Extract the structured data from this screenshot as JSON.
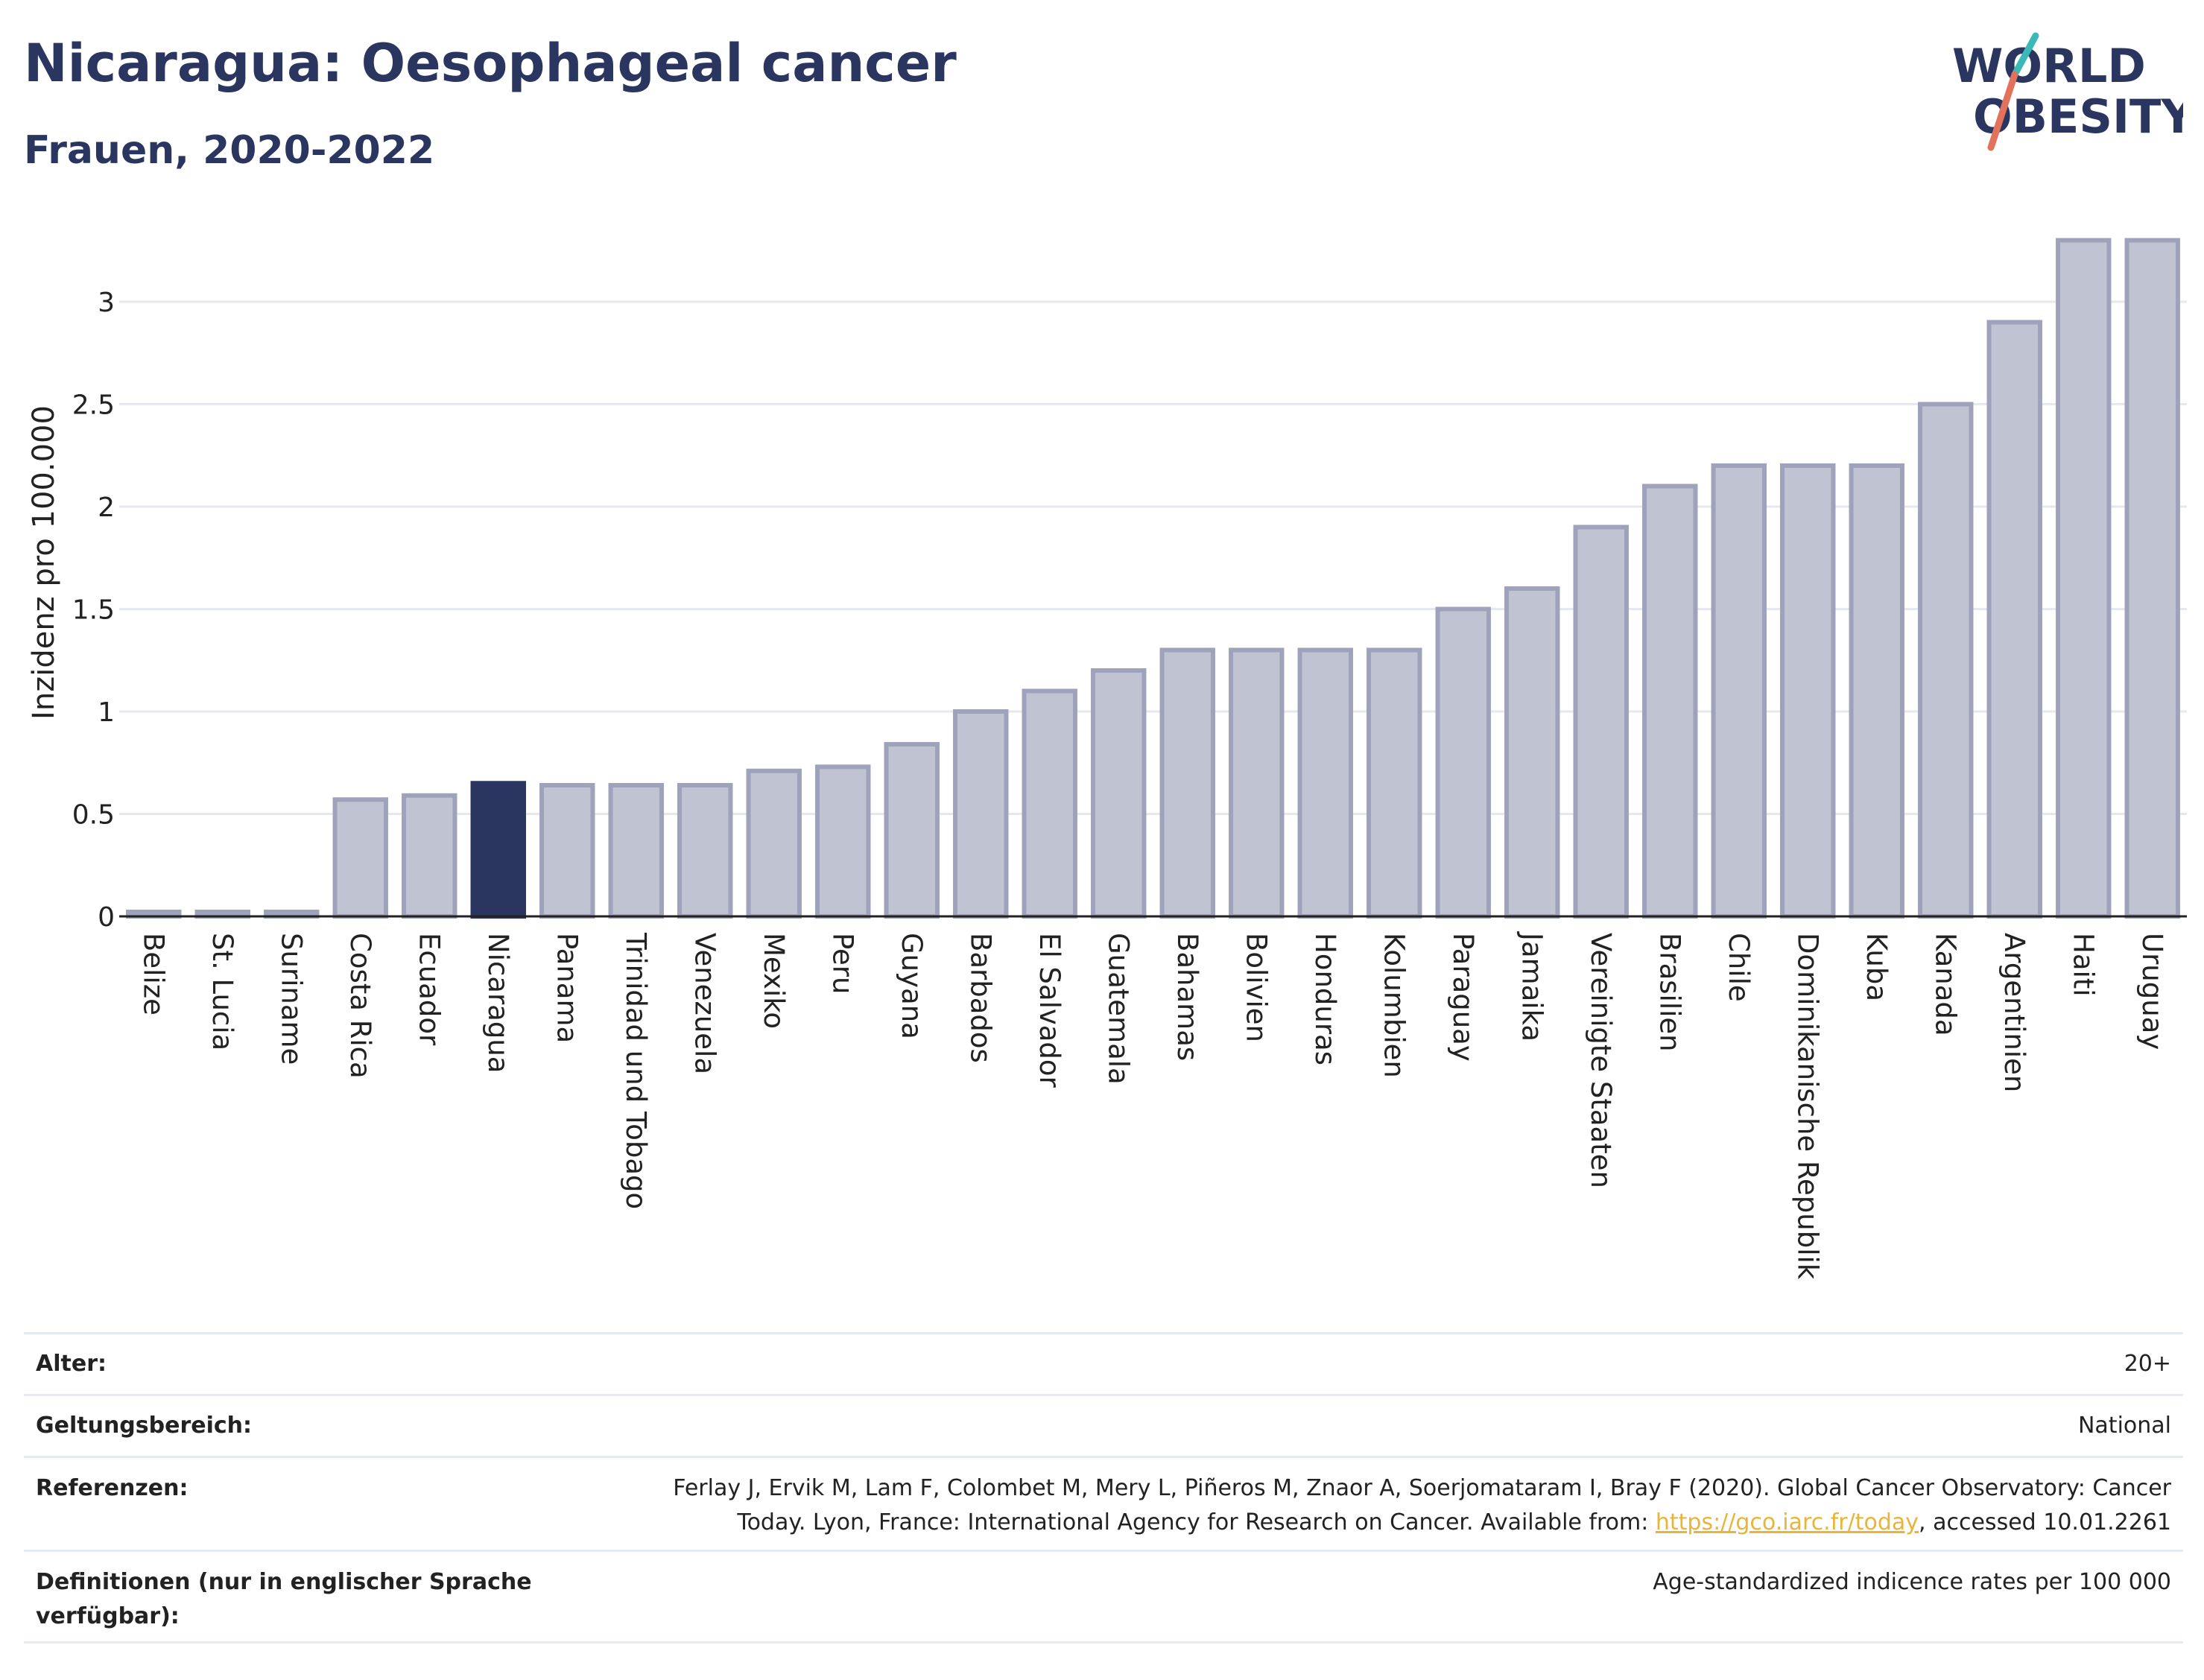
{
  "header": {
    "title": "Nicaragua: Oesophageal cancer",
    "subtitle": "Frauen, 2020-2022"
  },
  "logo": {
    "line1": "WORLD",
    "line2": "OBESITY"
  },
  "colors": {
    "highlight": "#2a3560",
    "bar_fill": "#bfc3d2",
    "bar_stroke": "#9ea3bb",
    "grid": "#e5e8ee",
    "text": "#2a3560",
    "logo_teal": "#3bb8b8",
    "logo_coral": "#e2725b"
  },
  "chart_data": {
    "type": "bar",
    "title": "",
    "xlabel": "",
    "ylabel": "Inzidenz pro 100.000",
    "ylim": [
      0,
      3.3
    ],
    "yticks": [
      0,
      0.5,
      1,
      1.5,
      2,
      2.5,
      3
    ],
    "ytick_labels": [
      "0",
      "0.5",
      "1",
      "1.5",
      "2",
      "2.5",
      "3"
    ],
    "grid": true,
    "highlight": "Nicaragua",
    "categories": [
      "Belize",
      "St. Lucia",
      "Suriname",
      "Costa Rica",
      "Ecuador",
      "Nicaragua",
      "Panama",
      "Trinidad und Tobago",
      "Venezuela",
      "Mexiko",
      "Peru",
      "Guyana",
      "Barbados",
      "El Salvador",
      "Guatemala",
      "Bahamas",
      "Bolivien",
      "Honduras",
      "Kolumbien",
      "Paraguay",
      "Jamaika",
      "Vereinigte Staaten",
      "Brasilien",
      "Chile",
      "Dominikanische Republik",
      "Kuba",
      "Kanada",
      "Argentinien",
      "Haiti",
      "Uruguay"
    ],
    "values": [
      0,
      0,
      0,
      0.57,
      0.59,
      0.65,
      0.64,
      0.64,
      0.64,
      0.71,
      0.73,
      0.84,
      1.0,
      1.1,
      1.2,
      1.3,
      1.3,
      1.3,
      1.3,
      1.5,
      1.6,
      1.9,
      2.1,
      2.2,
      2.2,
      2.2,
      2.5,
      2.9,
      3.3,
      3.3
    ]
  },
  "footer": {
    "rows": [
      {
        "label": "Alter:",
        "value": "20+"
      },
      {
        "label": "Geltungsbereich:",
        "value": "National"
      },
      {
        "label": "Referenzen:",
        "value_line1": "Ferlay J, Ervik M, Lam F, Colombet M, Mery L, Piñeros M, Znaor A, Soerjomataram I, Bray F (2020). Global Cancer Observatory: Cancer",
        "value_line2_pre": "Today. Lyon, France: International Agency for Research on Cancer. Available from: ",
        "link": "https://gco.iarc.fr/today",
        "value_line2_post": ", accessed 10.01.2261"
      },
      {
        "label_line1": "Definitionen (nur in englischer Sprache",
        "label_line2": "verfügbar):",
        "value": "Age-standardized indicence rates per 100 000"
      }
    ]
  }
}
